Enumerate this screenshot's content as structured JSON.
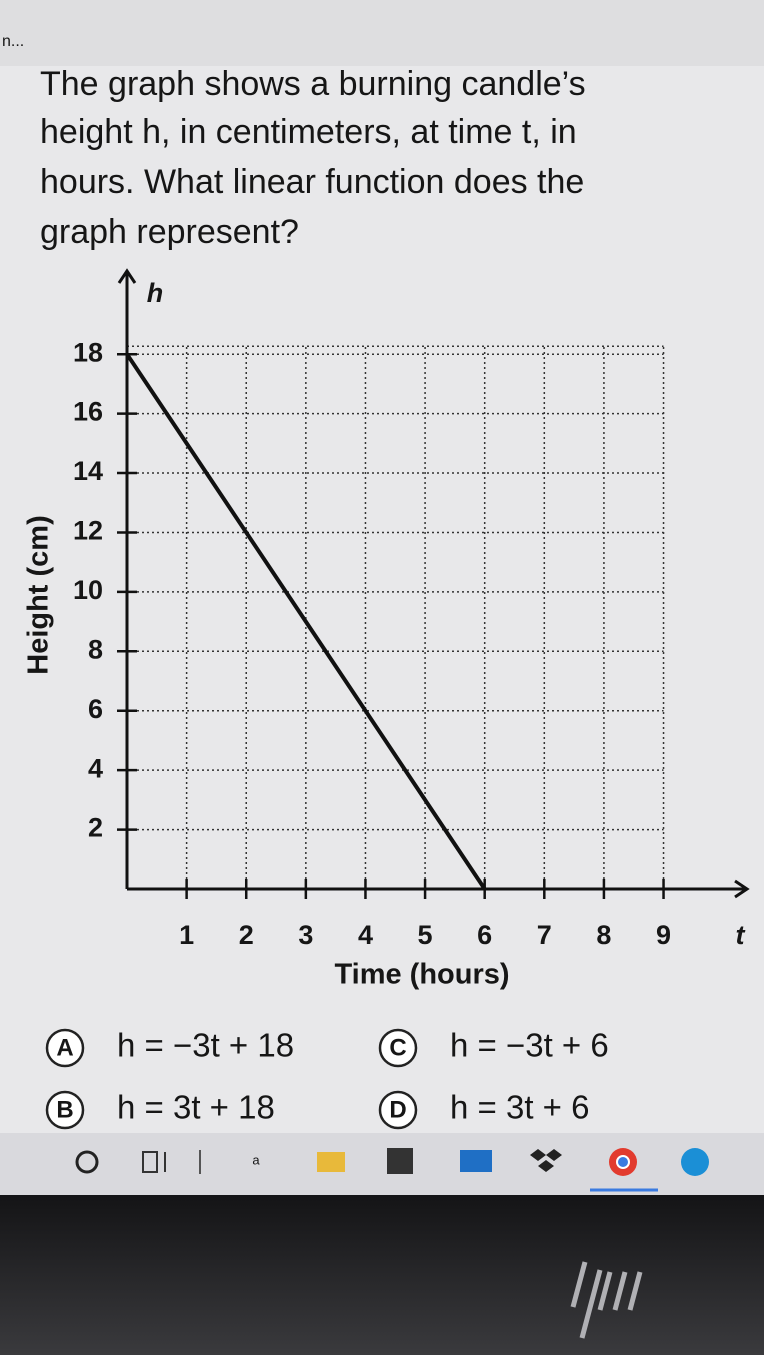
{
  "header": {
    "truncated_text": "n..."
  },
  "question": [
    "The graph shows a burning candle’s",
    "height h, in centimeters, at time t, in",
    "hours. What linear function does the",
    "graph represent?"
  ],
  "chart_data": {
    "type": "line",
    "x_label": "Time (hours)",
    "y_label": "Height (cm)",
    "x_axis_letter": "t",
    "y_axis_letter": "h",
    "x": [
      0,
      6
    ],
    "series": [
      {
        "color": "#111111",
        "values": [
          18,
          0
        ]
      }
    ],
    "xlim": [
      0,
      10.4
    ],
    "ylim": [
      0,
      20.8
    ],
    "xticks": [
      1,
      2,
      3,
      4,
      5,
      6,
      7,
      8,
      9
    ],
    "yticks": [
      2,
      4,
      6,
      8,
      10,
      12,
      14,
      16,
      18
    ],
    "grid": true
  },
  "choices": [
    {
      "letter": "A",
      "text": "h = −3t + 18"
    },
    {
      "letter": "B",
      "text": "h = 3t + 18"
    },
    {
      "letter": "C",
      "text": "h = −3t + 6"
    },
    {
      "letter": "D",
      "text": "h = 3t + 6"
    }
  ],
  "taskbar": {
    "app_text": "a"
  }
}
